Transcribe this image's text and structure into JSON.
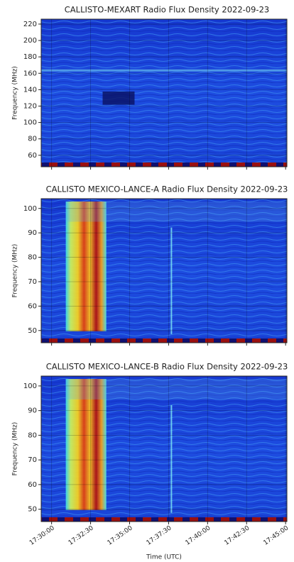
{
  "chart_data": [
    {
      "type": "spectrogram",
      "title": "CALLISTO-MEXART Radio Flux Density 2022-09-23",
      "ylabel": "Frequency (MHz)",
      "ylim": [
        46,
        226
      ],
      "yticks": [
        60,
        80,
        100,
        120,
        140,
        160,
        180,
        200,
        220
      ],
      "xlim": [
        62960,
        63905
      ],
      "xticks": [
        63000,
        63150,
        63300,
        63450,
        63600,
        63750,
        63900
      ],
      "grid": true
    },
    {
      "type": "spectrogram",
      "title": "CALLISTO MEXICO-LANCE-A Radio Flux Density 2022-09-23",
      "ylabel": "Frequency (MHz)",
      "ylim": [
        45,
        104
      ],
      "yticks": [
        50,
        60,
        70,
        80,
        90,
        100
      ],
      "xlim": [
        62960,
        63905
      ],
      "xticks": [
        63000,
        63150,
        63300,
        63450,
        63600,
        63750,
        63900
      ],
      "grid": true
    },
    {
      "type": "spectrogram",
      "title": "CALLISTO MEXICO-LANCE-B Radio Flux Density 2022-09-23",
      "ylabel": "Frequency (MHz)",
      "xlabel": "Time (UTC)",
      "ylim": [
        45,
        104
      ],
      "yticks": [
        50,
        60,
        70,
        80,
        90,
        100
      ],
      "xlim": [
        62960,
        63905
      ],
      "xticks": [
        {
          "value": 63000,
          "label": "17:30:00"
        },
        {
          "value": 63150,
          "label": "17:32:30"
        },
        {
          "value": 63300,
          "label": "17:35:00"
        },
        {
          "value": 63450,
          "label": "17:37:30"
        },
        {
          "value": 63600,
          "label": "17:40:00"
        },
        {
          "value": 63750,
          "label": "17:42:30"
        },
        {
          "value": 63900,
          "label": "17:45:00"
        }
      ],
      "grid": true
    }
  ]
}
